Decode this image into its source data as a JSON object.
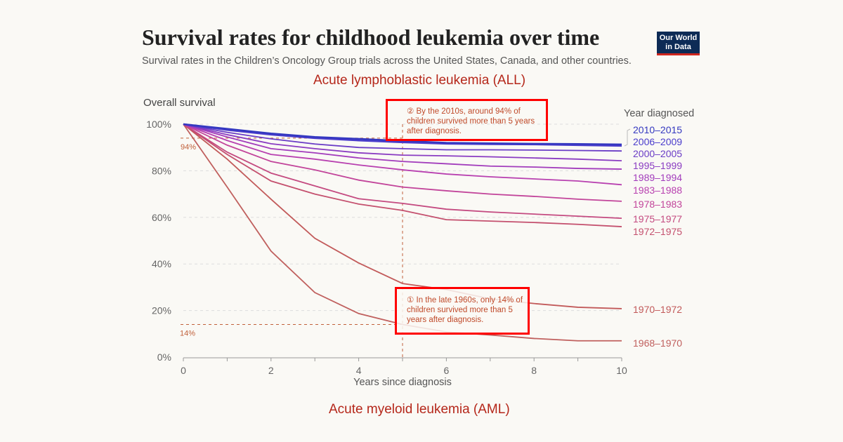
{
  "header": {
    "title": "Survival rates for childhood leukemia over time",
    "subtitle": "Survival rates in the Children’s Oncology Group trials across the United States, Canada, and other countries.",
    "logo": "Our World in Data"
  },
  "sections": {
    "top": "Acute lymphoblastic leukemia (ALL)",
    "bottom": "Acute myeloid leukemia (AML)"
  },
  "annotations": {
    "note2": "② By the 2010s, around 94% of children survived more than 5 years after diagnosis.",
    "note1": "① In the late 1960s, only 14% of children survived more than 5 years after diagnosis.",
    "ref94": "94%",
    "ref14": "14%"
  },
  "chart_data": {
    "type": "line",
    "title": "Acute lymphoblastic leukemia (ALL)",
    "xlabel": "Years since diagnosis",
    "ylabel": "Overall survival",
    "legend_title": "Year diagnosed",
    "legend_placement": "right (direct labels)",
    "xlim": [
      0,
      10
    ],
    "ylim": [
      0,
      100
    ],
    "xticks": [
      0,
      2,
      4,
      6,
      8,
      10
    ],
    "yticks": [
      0,
      20,
      40,
      60,
      80,
      100
    ],
    "ytick_labels": [
      "0%",
      "20%",
      "40%",
      "60%",
      "80%",
      "100%"
    ],
    "grid": "horizontal dashed",
    "x": [
      0,
      1,
      2,
      3,
      4,
      5,
      6,
      7,
      8,
      9,
      10
    ],
    "series": [
      {
        "name": "1968–1970",
        "color": "#c0605e",
        "values": [
          100,
          73,
          45.5,
          27.7,
          18.7,
          14,
          10.8,
          9.5,
          8,
          7,
          7
        ]
      },
      {
        "name": "1970–1972",
        "color": "#c25a5a",
        "values": [
          100,
          85,
          67.8,
          51,
          40.4,
          31.6,
          29,
          25,
          23,
          21.4,
          20.8
        ]
      },
      {
        "name": "1972–1975",
        "color": "#c4506e",
        "values": [
          100,
          87,
          75.6,
          70,
          65.7,
          63,
          59,
          58.4,
          57.8,
          57,
          56
        ]
      },
      {
        "name": "1975–1977",
        "color": "#c44a80",
        "values": [
          100,
          88,
          79,
          73.5,
          68,
          66,
          63.5,
          62.3,
          61.4,
          60.5,
          59.6
        ]
      },
      {
        "name": "1978–1983",
        "color": "#c2449a",
        "values": [
          100,
          91,
          84,
          80.4,
          76,
          73,
          71.4,
          70,
          69,
          67.8,
          66.9
        ]
      },
      {
        "name": "1983–1988",
        "color": "#b840b0",
        "values": [
          100,
          93,
          87,
          85,
          82.5,
          80.4,
          78.6,
          77.4,
          76.5,
          75.6,
          74
        ]
      },
      {
        "name": "1989–1994",
        "color": "#a23cbc",
        "values": [
          100,
          94.5,
          89.5,
          87.7,
          85.5,
          84,
          83,
          82,
          81.6,
          81,
          80.7
        ]
      },
      {
        "name": "1995–1999",
        "color": "#8a3cc2",
        "values": [
          100,
          95.5,
          91.6,
          89.5,
          87.7,
          86.7,
          86.4,
          86,
          85.5,
          85,
          84.3
        ]
      },
      {
        "name": "2000–2005",
        "color": "#6a3cc6",
        "values": [
          100,
          96.5,
          93.7,
          91.5,
          90,
          89.5,
          89,
          89,
          88.9,
          88.7,
          88.5
        ]
      },
      {
        "name": "2006–2009",
        "color": "#4a3ccc",
        "values": [
          100,
          97.5,
          95.5,
          94,
          93,
          92.2,
          91.6,
          91.4,
          91.3,
          91,
          90.7
        ]
      },
      {
        "name": "2010–2015",
        "color": "#3438c0",
        "values": [
          100,
          98,
          96,
          94.5,
          93.7,
          92.8,
          92,
          91.8,
          91.6,
          91.5,
          91.3
        ]
      }
    ]
  }
}
